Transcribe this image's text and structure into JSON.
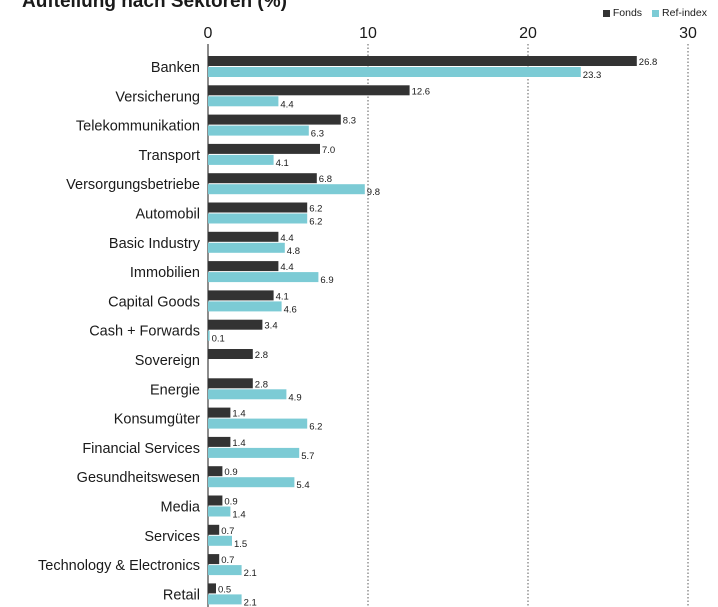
{
  "chart_data": {
    "type": "bar",
    "orientation": "horizontal",
    "title": "Aufteilung nach Sektoren (%)",
    "categories": [
      "Banken",
      "Versicherung",
      "Telekommunikation",
      "Transport",
      "Versorgungsbetriebe",
      "Automobil",
      "Basic Industry",
      "Immobilien",
      "Capital Goods",
      "Cash + Forwards",
      "Sovereign",
      "Energie",
      "Konsumgüter",
      "Financial Services",
      "Gesundheitswesen",
      "Media",
      "Services",
      "Technology & Electronics",
      "Retail"
    ],
    "series": [
      {
        "name": "Fonds",
        "color": "#333333",
        "values": [
          26.8,
          12.6,
          8.3,
          7.0,
          6.8,
          6.2,
          4.4,
          4.4,
          4.1,
          3.4,
          2.8,
          2.8,
          1.4,
          1.4,
          0.9,
          0.9,
          0.7,
          0.7,
          0.5
        ]
      },
      {
        "name": "Ref-index",
        "color": "#7ccbd5",
        "values": [
          23.3,
          4.4,
          6.3,
          4.1,
          9.8,
          6.2,
          4.8,
          6.9,
          4.6,
          0.1,
          null,
          4.9,
          6.2,
          5.7,
          5.4,
          1.4,
          1.5,
          2.1,
          2.1
        ]
      }
    ],
    "xlim": [
      0,
      30
    ],
    "xticks": [
      0,
      10,
      20,
      30
    ],
    "grid": true,
    "legend_position": "top-right"
  }
}
